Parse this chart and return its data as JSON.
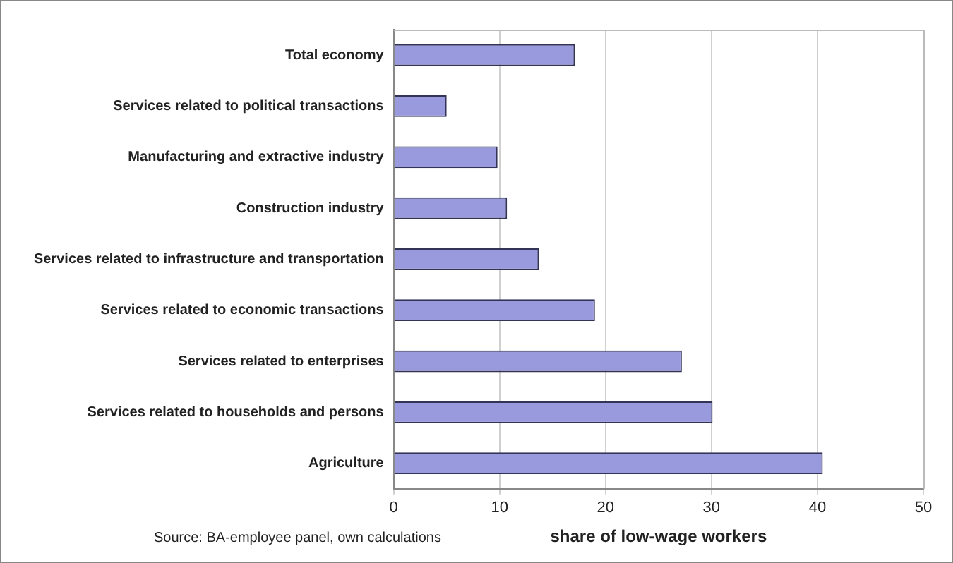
{
  "chart_data": {
    "type": "bar",
    "orientation": "horizontal",
    "categories": [
      "Total economy",
      "Services related to political transactions",
      "Manufacturing and extractive industry",
      "Construction industry",
      "Services related to infrastructure and transportation",
      "Services related to economic transactions",
      "Services related to enterprises",
      "Services related to households and persons",
      "Agriculture"
    ],
    "values": [
      17.1,
      5.0,
      9.8,
      10.7,
      13.7,
      19.0,
      27.2,
      30.1,
      40.5
    ],
    "color": "#9999dd",
    "xlim": [
      0,
      50
    ],
    "xticks": [
      0,
      10,
      20,
      30,
      40,
      50
    ],
    "xlabel": "share of low-wage workers",
    "annotations": [
      "Source: BA-employee panel, own calculations"
    ],
    "grid": "x",
    "legend": false
  }
}
